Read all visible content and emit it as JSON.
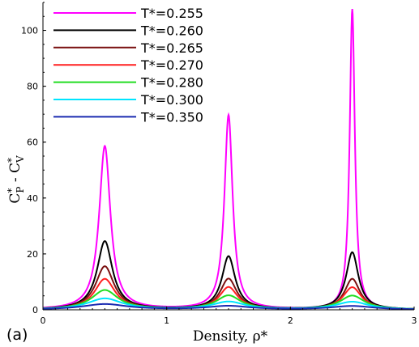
{
  "chart_data": {
    "type": "line",
    "panel_label": "(a)",
    "xlabel": "Density, ρ*",
    "ylabel": "C*P - C*V",
    "ylabel_parts": {
      "c1": "C",
      "s1": "*",
      "p1": "P",
      "mid": " - ",
      "c2": "C",
      "s2": "*",
      "p2": "V"
    },
    "xlim": [
      0,
      3
    ],
    "ylim": [
      0,
      110
    ],
    "x_ticks": [
      0,
      1,
      2,
      3
    ],
    "y_ticks": [
      0,
      20,
      40,
      60,
      80,
      100
    ],
    "legend_position": "top-left",
    "peak_x": [
      0.5,
      1.5,
      2.5
    ],
    "series": [
      {
        "name": "T*=0.255",
        "color": "#ff00ff",
        "peaks": [
          58.5,
          69.5,
          107.5
        ],
        "widths": [
          0.055,
          0.04,
          0.025
        ]
      },
      {
        "name": "T*=0.260",
        "color": "#000000",
        "peaks": [
          24.5,
          19.0,
          20.5
        ],
        "widths": [
          0.075,
          0.065,
          0.06
        ]
      },
      {
        "name": "T*=0.265",
        "color": "#7a1010",
        "peaks": [
          15.5,
          11.0,
          11.0
        ],
        "widths": [
          0.09,
          0.08,
          0.075
        ]
      },
      {
        "name": "T*=0.270",
        "color": "#ff2020",
        "peaks": [
          11.0,
          8.0,
          8.0
        ],
        "widths": [
          0.1,
          0.09,
          0.09
        ]
      },
      {
        "name": "T*=0.280",
        "color": "#22dd22",
        "peaks": [
          7.0,
          5.0,
          5.0
        ],
        "widths": [
          0.13,
          0.12,
          0.12
        ]
      },
      {
        "name": "T*=0.300",
        "color": "#00e5ff",
        "peaks": [
          4.0,
          2.8,
          2.8
        ],
        "widths": [
          0.17,
          0.16,
          0.16
        ]
      },
      {
        "name": "T*=0.350",
        "color": "#1a2ab0",
        "peaks": [
          2.0,
          1.3,
          1.3
        ],
        "widths": [
          0.22,
          0.21,
          0.21
        ]
      }
    ]
  }
}
